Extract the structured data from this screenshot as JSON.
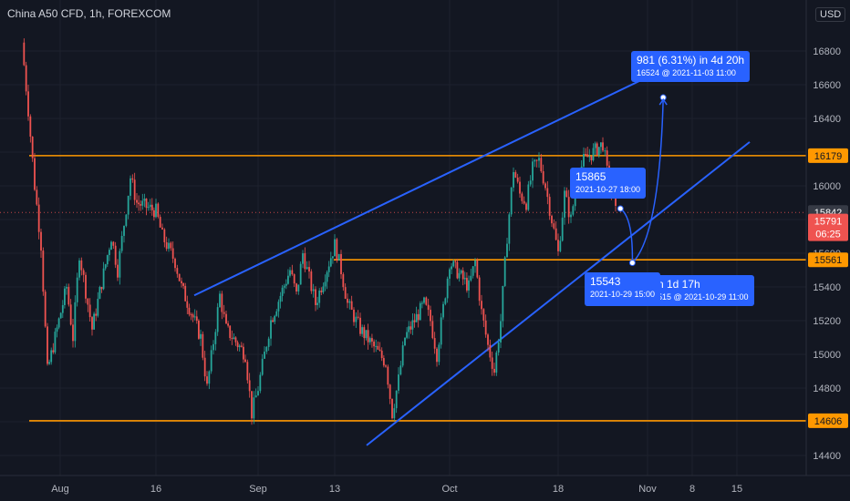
{
  "header": {
    "title": "China A50 CFD, 1h, FOREXCOM",
    "currency": "USD"
  },
  "colors": {
    "background": "#131722",
    "grid": "#1e222d",
    "up_candle": "#26a69a",
    "down_candle": "#ef5350",
    "level_line": "#ff9800",
    "channel_line": "#2962ff",
    "annotation_bg": "#2962ff",
    "last_price_bg": "#ef5350"
  },
  "chart_data": {
    "type": "candlestick",
    "title": "China A50 CFD, 1h, FOREXCOM",
    "ylim": [
      14300,
      16950
    ],
    "y_ticks": [
      14400,
      14600,
      14800,
      15000,
      15200,
      15400,
      15600,
      15800,
      16000,
      16200,
      16400,
      16600,
      16800
    ],
    "x_ticks": [
      "Aug",
      "16",
      "Sep",
      "13",
      "Oct",
      "18",
      "Nov",
      "8",
      "15"
    ],
    "x_tick_dates": [
      "2021-08-01",
      "2021-08-16",
      "2021-09-01",
      "2021-09-13",
      "2021-10-01",
      "2021-10-18",
      "2021-11-01",
      "2021-11-08",
      "2021-11-15"
    ],
    "grid": true,
    "price_path": [
      [
        "2021-07-26",
        16850
      ],
      [
        "2021-07-27",
        16450
      ],
      [
        "2021-07-28",
        16000
      ],
      [
        "2021-07-29",
        15650
      ],
      [
        "2021-07-30",
        14900
      ],
      [
        "2021-08-02",
        15400
      ],
      [
        "2021-08-03",
        15100
      ],
      [
        "2021-08-04",
        15600
      ],
      [
        "2021-08-06",
        15150
      ],
      [
        "2021-08-09",
        15700
      ],
      [
        "2021-08-10",
        15500
      ],
      [
        "2021-08-12",
        16050
      ],
      [
        "2021-08-13",
        15900
      ],
      [
        "2021-08-16",
        15850
      ],
      [
        "2021-08-17",
        15700
      ],
      [
        "2021-08-19",
        15550
      ],
      [
        "2021-08-20",
        15400
      ],
      [
        "2021-08-23",
        15100
      ],
      [
        "2021-08-24",
        14800
      ],
      [
        "2021-08-26",
        15350
      ],
      [
        "2021-08-27",
        15150
      ],
      [
        "2021-08-30",
        15000
      ],
      [
        "2021-08-31",
        14650
      ],
      [
        "2021-09-01",
        14800
      ],
      [
        "2021-09-03",
        15200
      ],
      [
        "2021-09-06",
        15500
      ],
      [
        "2021-09-07",
        15350
      ],
      [
        "2021-09-08",
        15600
      ],
      [
        "2021-09-10",
        15300
      ],
      [
        "2021-09-13",
        15650
      ],
      [
        "2021-09-14",
        15500
      ],
      [
        "2021-09-15",
        15300
      ],
      [
        "2021-09-17",
        15150
      ],
      [
        "2021-09-21",
        14950
      ],
      [
        "2021-09-22",
        14650
      ],
      [
        "2021-09-23",
        14850
      ],
      [
        "2021-09-24",
        15100
      ],
      [
        "2021-09-27",
        15300
      ],
      [
        "2021-09-28",
        15200
      ],
      [
        "2021-09-29",
        15000
      ],
      [
        "2021-10-01",
        15550
      ],
      [
        "2021-10-04",
        15400
      ],
      [
        "2021-10-05",
        15550
      ],
      [
        "2021-10-06",
        15250
      ],
      [
        "2021-10-07",
        15050
      ],
      [
        "2021-10-08",
        14900
      ],
      [
        "2021-10-09",
        15200
      ],
      [
        "2021-10-10",
        15700
      ],
      [
        "2021-10-11",
        16100
      ],
      [
        "2021-10-12",
        15950
      ],
      [
        "2021-10-13",
        15900
      ],
      [
        "2021-10-14",
        16100
      ],
      [
        "2021-10-15",
        16150
      ],
      [
        "2021-10-16",
        16000
      ],
      [
        "2021-10-18",
        15600
      ],
      [
        "2021-10-19",
        15950
      ],
      [
        "2021-10-20",
        15800
      ],
      [
        "2021-10-21",
        16050
      ],
      [
        "2021-10-22",
        16150
      ],
      [
        "2021-10-25",
        16250
      ],
      [
        "2021-10-26",
        16000
      ],
      [
        "2021-10-27",
        15842
      ]
    ],
    "horizontal_levels": [
      {
        "value": 16179,
        "label": "16179"
      },
      {
        "value": 15561,
        "label": "15561"
      },
      {
        "value": 14606,
        "label": "14606"
      }
    ],
    "channel_lines": [
      {
        "from": [
          "2021-08-22",
          15350
        ],
        "to": [
          "2021-11-04",
          16700
        ]
      },
      {
        "from": [
          "2021-09-18",
          14460
        ],
        "to": [
          "2021-11-17",
          16260
        ]
      }
    ],
    "last_price": {
      "value": 15791,
      "label": "15791",
      "countdown": "06:25"
    },
    "crosshair_price": {
      "value": 15842,
      "label": "15842"
    },
    "projection_path": [
      [
        "2021-10-27 18:00",
        15865
      ],
      [
        "2021-10-29 15:00",
        15543
      ],
      [
        "2021-11-03 11:00",
        16524
      ]
    ],
    "annotations": [
      {
        "lines": [
          "981 (6.31%) in 4d 20h",
          "16524 @ 2021-11-03  11:00"
        ],
        "anchor": [
          "2021-11-03 11:00",
          16524
        ]
      },
      {
        "lines": [
          "15865",
          "2021-10-27 18:00"
        ],
        "anchor": [
          "2021-10-27 18:00",
          15865
        ]
      },
      {
        "lines": [
          "15543",
          "2021-10-29 15:00"
        ],
        "anchor": [
          "2021-10-29 15:00",
          15543
        ]
      },
      {
        "lines": [
          ") in 1d 17h",
          "15515 @ 2021-10-29  11:00"
        ],
        "anchor": [
          "2021-10-29 11:00",
          15515
        ]
      }
    ]
  }
}
